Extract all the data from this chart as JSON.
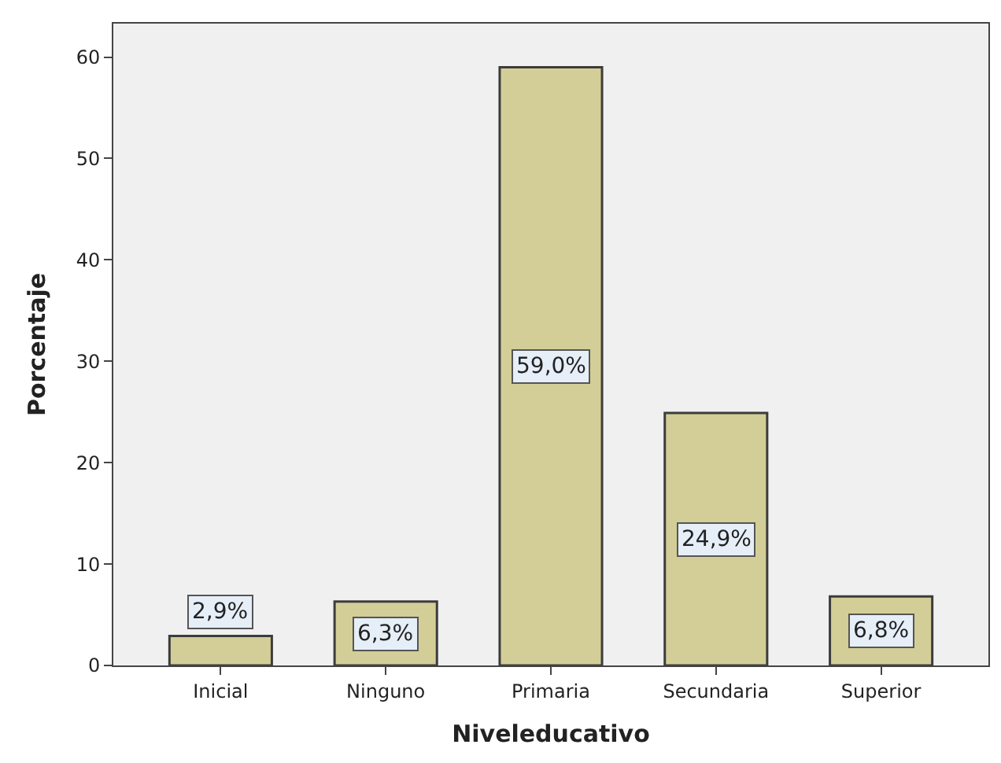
{
  "chart_data": {
    "type": "bar",
    "xlabel": "Niveleducativo",
    "ylabel": "Porcentaje",
    "categories": [
      "Inicial",
      "Ninguno",
      "Primaria",
      "Secundaria",
      "Superior"
    ],
    "values": [
      2.9,
      6.3,
      59.0,
      24.9,
      6.8
    ],
    "value_labels": [
      "2,9%",
      "6,3%",
      "59,0%",
      "24,9%",
      "6,8%"
    ],
    "color": "#d3ce97",
    "ylim": [
      0,
      63.3
    ],
    "yticks": [
      0,
      10,
      20,
      30,
      40,
      50,
      60
    ],
    "grid": false,
    "legend": false
  }
}
